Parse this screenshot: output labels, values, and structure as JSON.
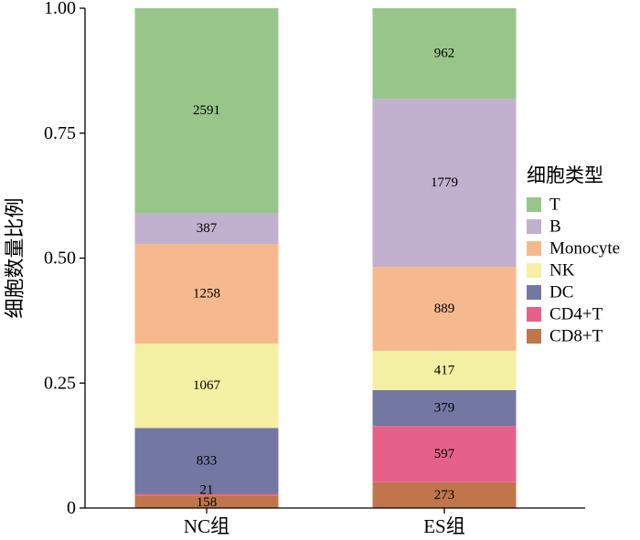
{
  "chart_data": {
    "type": "bar",
    "stacked": true,
    "normalized": true,
    "ylabel": "细胞数量比例",
    "ylim": [
      0,
      1
    ],
    "yticks": [
      "0",
      "0.25",
      "0.50",
      "0.75",
      "1.00"
    ],
    "ytick_values": [
      0,
      0.25,
      0.5,
      0.75,
      1.0
    ],
    "categories": [
      "NC组",
      "ES组"
    ],
    "legend": {
      "title": "细胞类型",
      "placement": "right"
    },
    "series": [
      {
        "name": "CD8+T",
        "color": "#c0764a",
        "values": [
          158,
          273
        ]
      },
      {
        "name": "CD4+T",
        "color": "#e5618a",
        "values": [
          21,
          597
        ]
      },
      {
        "name": "DC",
        "color": "#7378a3",
        "values": [
          833,
          379
        ]
      },
      {
        "name": "NK",
        "color": "#f4f0a3",
        "values": [
          1067,
          417
        ]
      },
      {
        "name": "Monocyte",
        "color": "#f6b98d",
        "values": [
          1258,
          889
        ]
      },
      {
        "name": "B",
        "color": "#c2b0cf",
        "values": [
          387,
          1779
        ]
      },
      {
        "name": "T",
        "color": "#98c68a",
        "values": [
          2591,
          962
        ]
      }
    ],
    "legend_order": [
      "T",
      "B",
      "Monocyte",
      "NK",
      "DC",
      "CD4+T",
      "CD8+T"
    ]
  }
}
